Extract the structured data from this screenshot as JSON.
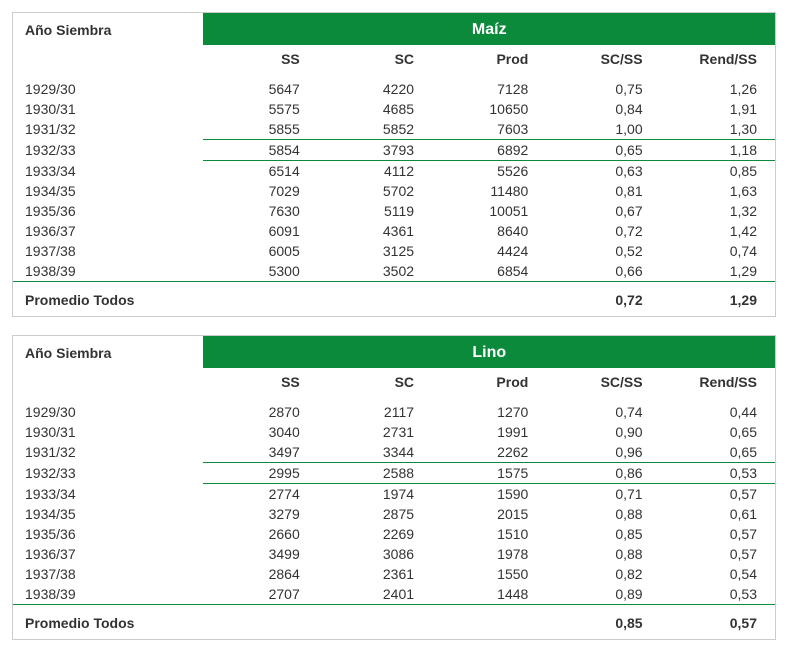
{
  "colors": {
    "header_bg": "#0a8a3a",
    "header_fg": "#ffffff",
    "border": "#cccccc",
    "sep": "#0a8a3a",
    "text": "#333333",
    "bg": "#ffffff"
  },
  "labels": {
    "year": "Año Siembra",
    "summary": "Promedio Todos",
    "cols": [
      "SS",
      "SC",
      "Prod",
      "SC/SS",
      "Rend/SS"
    ]
  },
  "tables": [
    {
      "crop": "Maíz",
      "rows": [
        {
          "year": "1929/30",
          "ss": "5647",
          "sc": "4220",
          "prod": "7128",
          "scss": "0,75",
          "rendss": "1,26"
        },
        {
          "year": "1930/31",
          "ss": "5575",
          "sc": "4685",
          "prod": "10650",
          "scss": "0,84",
          "rendss": "1,91"
        },
        {
          "year": "1931/32",
          "ss": "5855",
          "sc": "5852",
          "prod": "7603",
          "scss": "1,00",
          "rendss": "1,30"
        },
        {
          "year": "1932/33",
          "ss": "5854",
          "sc": "3793",
          "prod": "6892",
          "scss": "0,65",
          "rendss": "1,18"
        },
        {
          "year": "1933/34",
          "ss": "6514",
          "sc": "4112",
          "prod": "5526",
          "scss": "0,63",
          "rendss": "0,85"
        },
        {
          "year": "1934/35",
          "ss": "7029",
          "sc": "5702",
          "prod": "11480",
          "scss": "0,81",
          "rendss": "1,63"
        },
        {
          "year": "1935/36",
          "ss": "7630",
          "sc": "5119",
          "prod": "10051",
          "scss": "0,67",
          "rendss": "1,32"
        },
        {
          "year": "1936/37",
          "ss": "6091",
          "sc": "4361",
          "prod": "8640",
          "scss": "0,72",
          "rendss": "1,42"
        },
        {
          "year": "1937/38",
          "ss": "6005",
          "sc": "3125",
          "prod": "4424",
          "scss": "0,52",
          "rendss": "0,74"
        },
        {
          "year": "1938/39",
          "ss": "5300",
          "sc": "3502",
          "prod": "6854",
          "scss": "0,66",
          "rendss": "1,29"
        }
      ],
      "separators_after": [
        2,
        3
      ],
      "summary": {
        "scss": "0,72",
        "rendss": "1,29"
      }
    },
    {
      "crop": "Lino",
      "rows": [
        {
          "year": "1929/30",
          "ss": "2870",
          "sc": "2117",
          "prod": "1270",
          "scss": "0,74",
          "rendss": "0,44"
        },
        {
          "year": "1930/31",
          "ss": "3040",
          "sc": "2731",
          "prod": "1991",
          "scss": "0,90",
          "rendss": "0,65"
        },
        {
          "year": "1931/32",
          "ss": "3497",
          "sc": "3344",
          "prod": "2262",
          "scss": "0,96",
          "rendss": "0,65"
        },
        {
          "year": "1932/33",
          "ss": "2995",
          "sc": "2588",
          "prod": "1575",
          "scss": "0,86",
          "rendss": "0,53"
        },
        {
          "year": "1933/34",
          "ss": "2774",
          "sc": "1974",
          "prod": "1590",
          "scss": "0,71",
          "rendss": "0,57"
        },
        {
          "year": "1934/35",
          "ss": "3279",
          "sc": "2875",
          "prod": "2015",
          "scss": "0,88",
          "rendss": "0,61"
        },
        {
          "year": "1935/36",
          "ss": "2660",
          "sc": "2269",
          "prod": "1510",
          "scss": "0,85",
          "rendss": "0,57"
        },
        {
          "year": "1936/37",
          "ss": "3499",
          "sc": "3086",
          "prod": "1978",
          "scss": "0,88",
          "rendss": "0,57"
        },
        {
          "year": "1937/38",
          "ss": "2864",
          "sc": "2361",
          "prod": "1550",
          "scss": "0,82",
          "rendss": "0,54"
        },
        {
          "year": "1938/39",
          "ss": "2707",
          "sc": "2401",
          "prod": "1448",
          "scss": "0,89",
          "rendss": "0,53"
        }
      ],
      "separators_after": [
        2,
        3
      ],
      "summary": {
        "scss": "0,85",
        "rendss": "0,57"
      }
    }
  ]
}
